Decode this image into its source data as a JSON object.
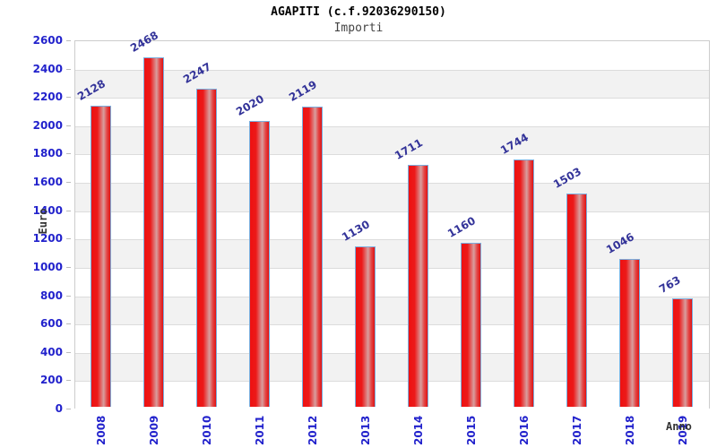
{
  "header": {
    "title": "AGAPITI (c.f.92036290150)",
    "subtitle": "Importi"
  },
  "chart_data": {
    "type": "bar",
    "title": "AGAPITI (c.f.92036290150)",
    "subtitle": "Importi",
    "categories": [
      "2008",
      "2009",
      "2010",
      "2011",
      "2012",
      "2013",
      "2014",
      "2015",
      "2016",
      "2017",
      "2018",
      "2019"
    ],
    "values": [
      2128,
      2468,
      2247,
      2020,
      2119,
      1130,
      1711,
      1160,
      1744,
      1503,
      1046,
      763
    ],
    "xlabel": "Anno",
    "ylabel": "Euro",
    "ylim": [
      0,
      2600
    ],
    "ytick_step": 200,
    "yticks": [
      0,
      200,
      400,
      600,
      800,
      1000,
      1200,
      1400,
      1600,
      1800,
      2000,
      2200,
      2400,
      2600
    ],
    "grid": "horizontal gridlines with alternating white/gray bands",
    "legend": "none",
    "colors": {
      "bar_main": "#ee1111",
      "bar_highlight": "#d89e9e",
      "bar_border": "#7aaede",
      "axis_tick_label": "#2222cc",
      "value_label": "#333399",
      "band_gray": "#f2f2f2",
      "band_white": "#ffffff",
      "gridline": "#dcdcdc",
      "plot_border": "#cccccc",
      "axis_title": "#333333",
      "title_color": "#000000",
      "subtitle_color": "#444444"
    }
  }
}
